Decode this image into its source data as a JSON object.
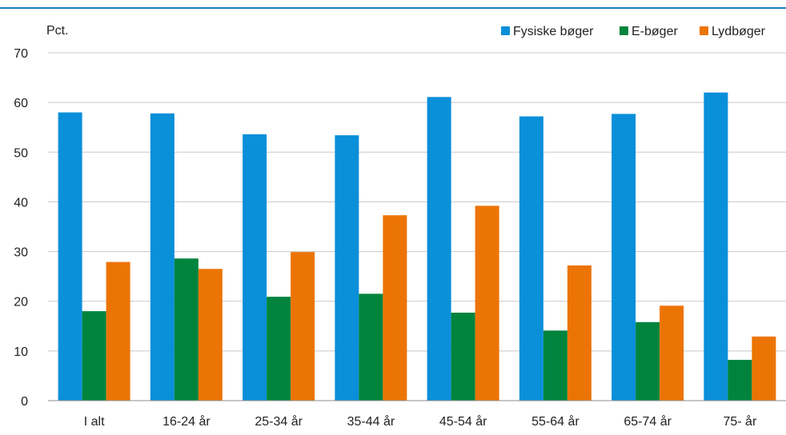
{
  "chart_data": {
    "type": "bar",
    "title": "",
    "unit_label": "Pct.",
    "xlabel": "",
    "ylabel": "",
    "ylim": [
      0,
      70
    ],
    "yticks": [
      0,
      10,
      20,
      30,
      40,
      50,
      60,
      70
    ],
    "grid": true,
    "legend_position": "top-right",
    "categories": [
      "I alt",
      "16-24 år",
      "25-34 år",
      "35-44 år",
      "45-54 år",
      "55-64 år",
      "65-74 år",
      "75- år"
    ],
    "series": [
      {
        "name": "Fysiske bøger",
        "color": "#0a8fd9",
        "values": [
          58,
          57.8,
          53.6,
          53.4,
          61.1,
          57.2,
          57.7,
          62
        ]
      },
      {
        "name": "E-bøger",
        "color": "#00843d",
        "values": [
          18,
          28.6,
          20.9,
          21.5,
          17.7,
          14.1,
          15.8,
          8.2
        ]
      },
      {
        "name": "Lydbøger",
        "color": "#ec7404",
        "values": [
          27.9,
          26.5,
          29.9,
          37.3,
          39.2,
          27.2,
          19.1,
          12.9
        ]
      }
    ],
    "top_rule_color": "#1b7fc4",
    "gridline_color": "#c8c8c8",
    "axis_color": "#8c8c8c"
  }
}
